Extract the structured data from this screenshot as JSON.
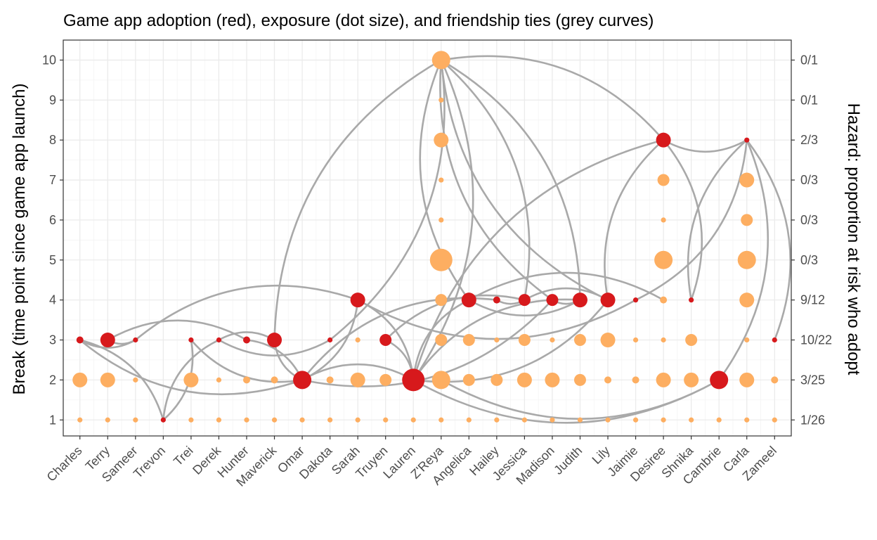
{
  "chart_data": {
    "type": "scatter",
    "title": "Game app adoption (red), exposure (dot size), and friendship ties (grey curves)",
    "xlabel": "",
    "ylabel": "Break (time point since game app launch)",
    "ylabel_right": "Hazard: proportion at risk who adopt",
    "ylim": [
      0.6,
      10.5
    ],
    "yticks": [
      1,
      2,
      3,
      4,
      5,
      6,
      7,
      8,
      9,
      10
    ],
    "hazard_labels": [
      "1/26",
      "3/25",
      "10/22",
      "9/12",
      "0/3",
      "0/3",
      "0/3",
      "2/3",
      "0/1",
      "0/1"
    ],
    "categories": [
      "Charles",
      "Terry",
      "Sameer",
      "Trevon",
      "Trei",
      "Derek",
      "Hunter",
      "Maverick",
      "Omar",
      "Dakota",
      "Sarah",
      "Truyen",
      "Lauren",
      "Z'Reya",
      "Angelica",
      "Hailey",
      "Jessica",
      "Madison",
      "Judith",
      "Lily",
      "Jaimie",
      "Desiree",
      "Shnika",
      "Cambrie",
      "Carla",
      "Zameel"
    ],
    "grid": true,
    "colors": {
      "adopted": "#d7191c",
      "at_risk": "#fdae61",
      "tie": "#a9a9a9"
    },
    "legend": "none",
    "series": [
      {
        "name": "at risk",
        "color": "#fdae61",
        "points": [
          {
            "x": "Charles",
            "y": 1,
            "exposure": 0
          },
          {
            "x": "Charles",
            "y": 2,
            "exposure": 3
          },
          {
            "x": "Terry",
            "y": 1,
            "exposure": 0
          },
          {
            "x": "Terry",
            "y": 2,
            "exposure": 3
          },
          {
            "x": "Sameer",
            "y": 1,
            "exposure": 0
          },
          {
            "x": "Sameer",
            "y": 2,
            "exposure": 0
          },
          {
            "x": "Trei",
            "y": 1,
            "exposure": 0
          },
          {
            "x": "Trei",
            "y": 2,
            "exposure": 3
          },
          {
            "x": "Derek",
            "y": 1,
            "exposure": 0
          },
          {
            "x": "Derek",
            "y": 2,
            "exposure": 0
          },
          {
            "x": "Hunter",
            "y": 1,
            "exposure": 0
          },
          {
            "x": "Hunter",
            "y": 2,
            "exposure": 1
          },
          {
            "x": "Maverick",
            "y": 1,
            "exposure": 0
          },
          {
            "x": "Maverick",
            "y": 2,
            "exposure": 1
          },
          {
            "x": "Omar",
            "y": 1,
            "exposure": 0
          },
          {
            "x": "Dakota",
            "y": 1,
            "exposure": 0
          },
          {
            "x": "Dakota",
            "y": 2,
            "exposure": 1
          },
          {
            "x": "Sarah",
            "y": 1,
            "exposure": 0
          },
          {
            "x": "Sarah",
            "y": 2,
            "exposure": 3
          },
          {
            "x": "Sarah",
            "y": 3,
            "exposure": 0
          },
          {
            "x": "Truyen",
            "y": 1,
            "exposure": 0
          },
          {
            "x": "Truyen",
            "y": 2,
            "exposure": 2
          },
          {
            "x": "Lauren",
            "y": 1,
            "exposure": 0
          },
          {
            "x": "Z'Reya",
            "y": 1,
            "exposure": 0
          },
          {
            "x": "Z'Reya",
            "y": 2,
            "exposure": 4
          },
          {
            "x": "Z'Reya",
            "y": 3,
            "exposure": 2
          },
          {
            "x": "Z'Reya",
            "y": 4,
            "exposure": 2
          },
          {
            "x": "Z'Reya",
            "y": 5,
            "exposure": 5
          },
          {
            "x": "Z'Reya",
            "y": 6,
            "exposure": 0
          },
          {
            "x": "Z'Reya",
            "y": 7,
            "exposure": 0
          },
          {
            "x": "Z'Reya",
            "y": 8,
            "exposure": 3
          },
          {
            "x": "Z'Reya",
            "y": 9,
            "exposure": 0
          },
          {
            "x": "Z'Reya",
            "y": 10,
            "exposure": 4
          },
          {
            "x": "Angelica",
            "y": 1,
            "exposure": 0
          },
          {
            "x": "Angelica",
            "y": 2,
            "exposure": 2
          },
          {
            "x": "Angelica",
            "y": 3,
            "exposure": 2
          },
          {
            "x": "Hailey",
            "y": 1,
            "exposure": 0
          },
          {
            "x": "Hailey",
            "y": 2,
            "exposure": 2
          },
          {
            "x": "Hailey",
            "y": 3,
            "exposure": 0
          },
          {
            "x": "Jessica",
            "y": 1,
            "exposure": 0
          },
          {
            "x": "Jessica",
            "y": 2,
            "exposure": 3
          },
          {
            "x": "Jessica",
            "y": 3,
            "exposure": 2
          },
          {
            "x": "Madison",
            "y": 1,
            "exposure": 0
          },
          {
            "x": "Madison",
            "y": 2,
            "exposure": 3
          },
          {
            "x": "Madison",
            "y": 3,
            "exposure": 0
          },
          {
            "x": "Judith",
            "y": 1,
            "exposure": 0
          },
          {
            "x": "Judith",
            "y": 2,
            "exposure": 2
          },
          {
            "x": "Judith",
            "y": 3,
            "exposure": 2
          },
          {
            "x": "Lily",
            "y": 1,
            "exposure": 0
          },
          {
            "x": "Lily",
            "y": 2,
            "exposure": 1
          },
          {
            "x": "Lily",
            "y": 3,
            "exposure": 3
          },
          {
            "x": "Jaimie",
            "y": 1,
            "exposure": 0
          },
          {
            "x": "Jaimie",
            "y": 2,
            "exposure": 1
          },
          {
            "x": "Jaimie",
            "y": 3,
            "exposure": 0
          },
          {
            "x": "Desiree",
            "y": 1,
            "exposure": 0
          },
          {
            "x": "Desiree",
            "y": 2,
            "exposure": 3
          },
          {
            "x": "Desiree",
            "y": 3,
            "exposure": 0
          },
          {
            "x": "Desiree",
            "y": 4,
            "exposure": 1
          },
          {
            "x": "Desiree",
            "y": 5,
            "exposure": 4
          },
          {
            "x": "Desiree",
            "y": 6,
            "exposure": 0
          },
          {
            "x": "Desiree",
            "y": 7,
            "exposure": 2
          },
          {
            "x": "Shnika",
            "y": 1,
            "exposure": 0
          },
          {
            "x": "Shnika",
            "y": 2,
            "exposure": 3
          },
          {
            "x": "Shnika",
            "y": 3,
            "exposure": 2
          },
          {
            "x": "Cambrie",
            "y": 1,
            "exposure": 0
          },
          {
            "x": "Carla",
            "y": 1,
            "exposure": 0
          },
          {
            "x": "Carla",
            "y": 2,
            "exposure": 3
          },
          {
            "x": "Carla",
            "y": 3,
            "exposure": 0
          },
          {
            "x": "Carla",
            "y": 4,
            "exposure": 3
          },
          {
            "x": "Carla",
            "y": 5,
            "exposure": 4
          },
          {
            "x": "Carla",
            "y": 6,
            "exposure": 2
          },
          {
            "x": "Carla",
            "y": 7,
            "exposure": 3
          },
          {
            "x": "Zameel",
            "y": 1,
            "exposure": 0
          },
          {
            "x": "Zameel",
            "y": 2,
            "exposure": 1
          }
        ]
      },
      {
        "name": "adopted",
        "color": "#d7191c",
        "points": [
          {
            "x": "Trevon",
            "y": 1,
            "exposure": 0
          },
          {
            "x": "Omar",
            "y": 2,
            "exposure": 4
          },
          {
            "x": "Lauren",
            "y": 2,
            "exposure": 5
          },
          {
            "x": "Cambrie",
            "y": 2,
            "exposure": 4
          },
          {
            "x": "Charles",
            "y": 3,
            "exposure": 1
          },
          {
            "x": "Terry",
            "y": 3,
            "exposure": 3
          },
          {
            "x": "Sameer",
            "y": 3,
            "exposure": 0
          },
          {
            "x": "Trei",
            "y": 3,
            "exposure": 0
          },
          {
            "x": "Derek",
            "y": 3,
            "exposure": 0
          },
          {
            "x": "Hunter",
            "y": 3,
            "exposure": 1
          },
          {
            "x": "Maverick",
            "y": 3,
            "exposure": 3
          },
          {
            "x": "Dakota",
            "y": 3,
            "exposure": 0
          },
          {
            "x": "Truyen",
            "y": 3,
            "exposure": 2
          },
          {
            "x": "Zameel",
            "y": 3,
            "exposure": 0
          },
          {
            "x": "Sarah",
            "y": 4,
            "exposure": 3
          },
          {
            "x": "Angelica",
            "y": 4,
            "exposure": 3
          },
          {
            "x": "Hailey",
            "y": 4,
            "exposure": 1
          },
          {
            "x": "Jessica",
            "y": 4,
            "exposure": 2
          },
          {
            "x": "Madison",
            "y": 4,
            "exposure": 2
          },
          {
            "x": "Judith",
            "y": 4,
            "exposure": 3
          },
          {
            "x": "Lily",
            "y": 4,
            "exposure": 3
          },
          {
            "x": "Jaimie",
            "y": 4,
            "exposure": 0
          },
          {
            "x": "Shnika",
            "y": 4,
            "exposure": 0
          },
          {
            "x": "Desiree",
            "y": 8,
            "exposure": 3
          },
          {
            "x": "Carla",
            "y": 8,
            "exposure": 0
          }
        ]
      }
    ],
    "ties": [
      [
        "Charles",
        3,
        "Sameer",
        3
      ],
      [
        "Charles",
        3,
        "Trevon",
        1
      ],
      [
        "Charles",
        3,
        "Omar",
        2
      ],
      [
        "Terry",
        3,
        "Hunter",
        3
      ],
      [
        "Terry",
        3,
        "Sameer",
        3
      ],
      [
        "Sameer",
        3,
        "Sarah",
        4
      ],
      [
        "Trevon",
        1,
        "Trei",
        3
      ],
      [
        "Trevon",
        1,
        "Derek",
        3
      ],
      [
        "Trei",
        3,
        "Omar",
        2
      ],
      [
        "Derek",
        3,
        "Maverick",
        3
      ],
      [
        "Derek",
        3,
        "Dakota",
        3
      ],
      [
        "Hunter",
        3,
        "Omar",
        2
      ],
      [
        "Maverick",
        3,
        "Omar",
        2
      ],
      [
        "Maverick",
        3,
        "Z'Reya",
        10
      ],
      [
        "Omar",
        2,
        "Sarah",
        4
      ],
      [
        "Omar",
        2,
        "Hailey",
        4
      ],
      [
        "Omar",
        2,
        "Madison",
        4
      ],
      [
        "Omar",
        2,
        "Lauren",
        2
      ],
      [
        "Dakota",
        3,
        "Z'Reya",
        10
      ],
      [
        "Sarah",
        4,
        "Lauren",
        2
      ],
      [
        "Sarah",
        4,
        "Jaimie",
        4
      ],
      [
        "Truyen",
        3,
        "Lauren",
        2
      ],
      [
        "Lauren",
        2,
        "Z'Reya",
        10
      ],
      [
        "Lauren",
        2,
        "Angelica",
        4
      ],
      [
        "Lauren",
        2,
        "Cambrie",
        2
      ],
      [
        "Lauren",
        2,
        "Judith",
        4
      ],
      [
        "Lauren",
        2,
        "Lily",
        4
      ],
      [
        "Lauren",
        2,
        "Desiree",
        8
      ],
      [
        "Z'Reya",
        10,
        "Angelica",
        4
      ],
      [
        "Z'Reya",
        10,
        "Jessica",
        4
      ],
      [
        "Z'Reya",
        10,
        "Madison",
        4
      ],
      [
        "Z'Reya",
        10,
        "Judith",
        4
      ],
      [
        "Z'Reya",
        10,
        "Lily",
        4
      ],
      [
        "Z'Reya",
        10,
        "Desiree",
        8
      ],
      [
        "Angelica",
        4,
        "Judith",
        4
      ],
      [
        "Angelica",
        4,
        "Desiree",
        4
      ],
      [
        "Hailey",
        4,
        "Jessica",
        4
      ],
      [
        "Jessica",
        4,
        "Lily",
        4
      ],
      [
        "Madison",
        4,
        "Judith",
        4
      ],
      [
        "Lily",
        4,
        "Desiree",
        8
      ],
      [
        "Jaimie",
        4,
        "Carla",
        8
      ],
      [
        "Desiree",
        8,
        "Shnika",
        4
      ],
      [
        "Desiree",
        8,
        "Carla",
        8
      ],
      [
        "Shnika",
        4,
        "Carla",
        8
      ],
      [
        "Cambrie",
        2,
        "Carla",
        8
      ],
      [
        "Cambrie",
        2,
        "Z'Reya",
        2
      ],
      [
        "Zameel",
        3,
        "Carla",
        8
      ],
      [
        "Truyen",
        3,
        "Jessica",
        4
      ]
    ]
  }
}
